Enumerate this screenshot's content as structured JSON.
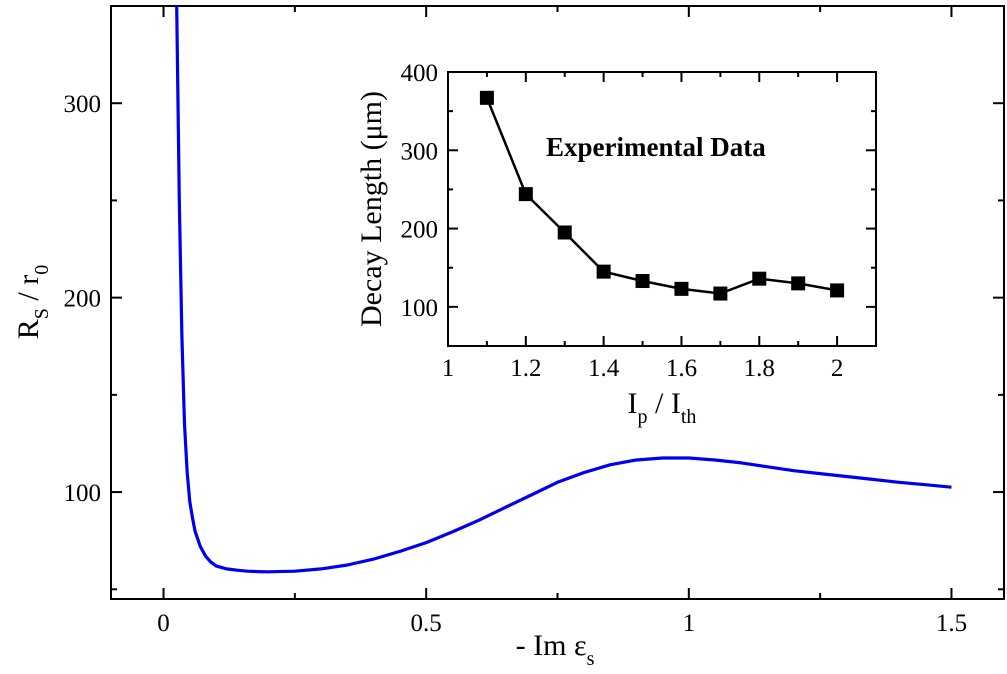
{
  "chart_data": [
    {
      "type": "line",
      "title": "",
      "xlabel": "- Im   ε",
      "xlabel_sub": "s",
      "ylabel": "R",
      "ylabel_sub": "S",
      "ylabel_rest": "  /  r",
      "ylabel_rest_sub": "0",
      "xlim": [
        -0.1,
        1.6
      ],
      "ylim": [
        45,
        350
      ],
      "xticks": [
        0,
        0.5,
        1,
        1.5
      ],
      "xtick_labels": [
        "0",
        "0.5",
        "1",
        "1.5"
      ],
      "yticks": [
        100,
        200,
        300
      ],
      "ytick_labels": [
        "100",
        "200",
        "300"
      ],
      "grid": false,
      "series": [
        {
          "name": "R_S / r_0",
          "color": "#0000ee",
          "x": [
            0.025,
            0.03,
            0.035,
            0.04,
            0.045,
            0.05,
            0.055,
            0.06,
            0.07,
            0.08,
            0.09,
            0.1,
            0.12,
            0.14,
            0.16,
            0.18,
            0.2,
            0.25,
            0.3,
            0.35,
            0.4,
            0.45,
            0.5,
            0.55,
            0.6,
            0.65,
            0.7,
            0.75,
            0.8,
            0.85,
            0.9,
            0.95,
            1.0,
            1.05,
            1.1,
            1.15,
            1.2,
            1.25,
            1.3,
            1.35,
            1.4,
            1.45,
            1.5
          ],
          "values": [
            350,
            250,
            180,
            135,
            110,
            95,
            87,
            80,
            72,
            67,
            64,
            62,
            60.5,
            59.8,
            59.3,
            59.1,
            59,
            59.3,
            60.5,
            62.5,
            65.5,
            69.5,
            74,
            79.5,
            85.5,
            92,
            98.5,
            105,
            110,
            114,
            116.5,
            117.5,
            117.5,
            116.5,
            115,
            113,
            111,
            109.5,
            108,
            106.5,
            105,
            103.8,
            102.5
          ]
        }
      ]
    },
    {
      "type": "line",
      "title": "",
      "annotation": "Experimental Data",
      "xlabel": "I",
      "xlabel_sub": "p",
      "xlabel_rest": " / I",
      "xlabel_rest_sub": "th",
      "ylabel": "Decay Length (μm)",
      "xlim": [
        1,
        2.1
      ],
      "ylim": [
        50,
        400
      ],
      "xticks": [
        1,
        1.2,
        1.4,
        1.6,
        1.8,
        2
      ],
      "xtick_labels": [
        "1",
        "1.2",
        "1.4",
        "1.6",
        "1.8",
        "2"
      ],
      "yticks": [
        100,
        200,
        300,
        400
      ],
      "ytick_labels": [
        "100",
        "200",
        "300",
        "400"
      ],
      "grid": false,
      "series": [
        {
          "name": "Experimental Data",
          "color": "#000000",
          "marker": "square",
          "x": [
            1.1,
            1.2,
            1.3,
            1.4,
            1.5,
            1.6,
            1.7,
            1.8,
            1.9,
            2.0
          ],
          "values": [
            367,
            244,
            195,
            145,
            133,
            123,
            117,
            136,
            130,
            121
          ]
        }
      ]
    }
  ]
}
